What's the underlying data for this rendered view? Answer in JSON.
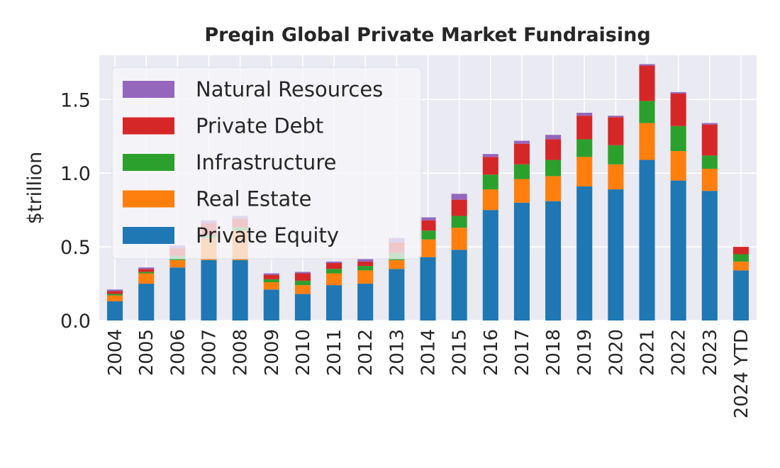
{
  "chart_data": {
    "type": "bar",
    "stacked": true,
    "title": "Preqin Global Private Market Fundraising",
    "xlabel": "",
    "ylabel": "$trillion",
    "ylim": [
      0,
      1.8
    ],
    "y_ticks": [
      "0.0",
      "0.5",
      "1.0",
      "1.5"
    ],
    "grid": true,
    "legend_position": "top-left",
    "categories": [
      "2004",
      "2005",
      "2006",
      "2007",
      "2008",
      "2009",
      "2010",
      "2011",
      "2012",
      "2013",
      "2014",
      "2015",
      "2016",
      "2017",
      "2018",
      "2019",
      "2020",
      "2021",
      "2022",
      "2023",
      "2024 YTD"
    ],
    "series": [
      {
        "name": "Private Equity",
        "color": "#1f77b4",
        "values": [
          0.13,
          0.25,
          0.36,
          0.41,
          0.41,
          0.21,
          0.18,
          0.24,
          0.25,
          0.35,
          0.43,
          0.48,
          0.75,
          0.8,
          0.81,
          0.91,
          0.89,
          1.09,
          0.95,
          0.88,
          0.34
        ]
      },
      {
        "name": "Real Estate",
        "color": "#ff7f0e",
        "values": [
          0.04,
          0.07,
          0.05,
          0.15,
          0.2,
          0.05,
          0.06,
          0.08,
          0.09,
          0.06,
          0.12,
          0.15,
          0.14,
          0.16,
          0.17,
          0.2,
          0.17,
          0.25,
          0.2,
          0.15,
          0.06
        ]
      },
      {
        "name": "Infrastructure",
        "color": "#2ca02c",
        "values": [
          0.01,
          0.01,
          0.03,
          0.02,
          0.02,
          0.02,
          0.03,
          0.03,
          0.03,
          0.05,
          0.06,
          0.08,
          0.1,
          0.1,
          0.11,
          0.12,
          0.13,
          0.15,
          0.17,
          0.09,
          0.05
        ]
      },
      {
        "name": "Private Debt",
        "color": "#d62728",
        "values": [
          0.02,
          0.02,
          0.05,
          0.08,
          0.06,
          0.03,
          0.05,
          0.04,
          0.03,
          0.07,
          0.07,
          0.11,
          0.12,
          0.14,
          0.14,
          0.16,
          0.19,
          0.24,
          0.22,
          0.21,
          0.05
        ]
      },
      {
        "name": "Natural Resources",
        "color": "#9467bd",
        "values": [
          0.01,
          0.01,
          0.02,
          0.02,
          0.02,
          0.01,
          0.01,
          0.01,
          0.02,
          0.03,
          0.02,
          0.04,
          0.02,
          0.02,
          0.03,
          0.02,
          0.01,
          0.01,
          0.01,
          0.01,
          0.0
        ]
      }
    ],
    "legend_order": [
      "Natural Resources",
      "Private Debt",
      "Infrastructure",
      "Real Estate",
      "Private Equity"
    ]
  }
}
